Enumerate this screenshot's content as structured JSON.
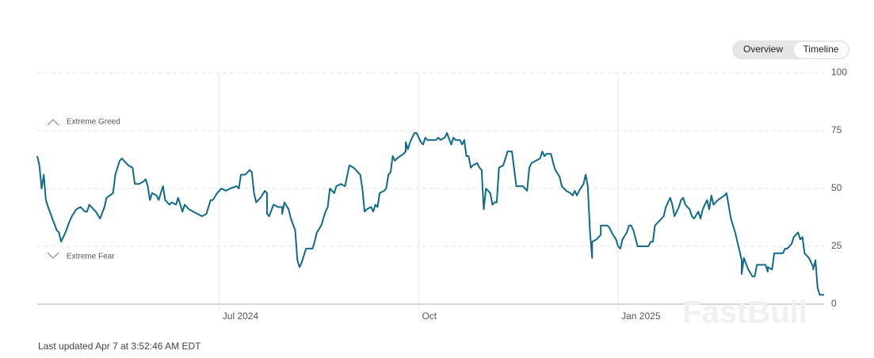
{
  "ui": {
    "buttons": [
      "Overview",
      "Timeline"
    ],
    "footer": "Last updated Apr 7 at 3:52:46 AM EDT",
    "watermark": "FastBull"
  },
  "chart_data": {
    "type": "line",
    "annotations": [
      "Extreme Greed",
      "Extreme Fear"
    ],
    "color": "#0f6a8c",
    "x": [
      0,
      1,
      2,
      3,
      4,
      5,
      7,
      9,
      10,
      11,
      13,
      15,
      16,
      18,
      20,
      22,
      23,
      24,
      26,
      27,
      29,
      31,
      32,
      35,
      36,
      38,
      39,
      41,
      42,
      44,
      45,
      47,
      49,
      50,
      51,
      52,
      53,
      55,
      56,
      58,
      59,
      61,
      62,
      64,
      65,
      67,
      68,
      70,
      72,
      74,
      76,
      78,
      79,
      80,
      81,
      83,
      85,
      87,
      89,
      92,
      93,
      94,
      96,
      98,
      99,
      100,
      101,
      103,
      105,
      106,
      106,
      107,
      109,
      111,
      113,
      113,
      114,
      116,
      117,
      119,
      120,
      121,
      122,
      124,
      125,
      127,
      128,
      129,
      131,
      133,
      134,
      135,
      137,
      138,
      140,
      142,
      144,
      146,
      147,
      149,
      150,
      151,
      152,
      154,
      155,
      156,
      157,
      158,
      160,
      161,
      162,
      163,
      164,
      165,
      166,
      169,
      170,
      170,
      171,
      172,
      173,
      174,
      175,
      177,
      178,
      179,
      180,
      182,
      184,
      185,
      186,
      188,
      189,
      191,
      192,
      193,
      195,
      196,
      197,
      198,
      199,
      200,
      201,
      203,
      204,
      205,
      206,
      207,
      209,
      210,
      211,
      212,
      213,
      215,
      216,
      217,
      219,
      221,
      224,
      226,
      227,
      228,
      230,
      232,
      233,
      234,
      235,
      237,
      238,
      239,
      241,
      242,
      244,
      246,
      247,
      248,
      249,
      250,
      252,
      253,
      254,
      255,
      256,
      256,
      258,
      260,
      260,
      263,
      264,
      265,
      267,
      268,
      269,
      270,
      272,
      273,
      274,
      275,
      277,
      280,
      282,
      283,
      284,
      285,
      287,
      289,
      290,
      292,
      293,
      294,
      296,
      297,
      298,
      299,
      301,
      302,
      303,
      305,
      306,
      307,
      308,
      309,
      310,
      311,
      312,
      313,
      314,
      317,
      318,
      320,
      322,
      324,
      325,
      325,
      326,
      328,
      330,
      331,
      332,
      335,
      336,
      337,
      337,
      339,
      339,
      340,
      342,
      344,
      345,
      346,
      348,
      349,
      351,
      352,
      353,
      354,
      355,
      356,
      358,
      358,
      359,
      360,
      361,
      363
    ],
    "values": [
      64,
      60,
      50,
      56,
      45,
      42,
      37,
      32,
      31,
      27,
      31,
      36,
      38,
      41,
      42,
      40,
      40,
      43,
      41,
      40,
      37,
      42,
      46,
      48,
      56,
      62,
      63,
      61,
      60,
      59,
      52,
      52,
      53,
      54,
      51,
      45,
      48,
      47,
      45,
      51,
      45,
      43,
      44,
      43,
      46,
      40,
      43,
      41,
      40,
      39,
      38,
      39,
      42,
      45,
      45,
      48,
      50,
      49,
      50,
      51,
      50,
      56,
      56,
      58,
      57,
      48,
      44,
      46,
      49,
      48,
      39,
      38,
      43,
      42,
      42,
      39,
      44,
      41,
      37,
      32,
      19,
      16,
      18,
      24,
      24,
      24,
      27,
      31,
      34,
      40,
      42,
      50,
      48,
      51,
      52,
      51,
      60,
      59,
      58,
      56,
      50,
      40,
      41,
      42,
      40,
      43,
      42,
      48,
      49,
      50,
      56,
      57,
      64,
      62,
      63,
      65,
      66,
      70,
      67,
      70,
      72,
      74,
      74,
      70,
      69,
      72,
      71,
      71,
      71,
      72,
      71,
      72,
      74,
      69,
      72,
      71,
      71,
      69,
      71,
      64,
      64,
      59,
      60,
      61,
      59,
      58,
      41,
      50,
      48,
      43,
      44,
      44,
      59,
      60,
      63,
      66,
      66,
      51,
      51,
      49,
      59,
      61,
      62,
      63,
      66,
      64,
      65,
      65,
      61,
      58,
      55,
      51,
      49,
      48,
      47,
      49,
      47,
      49,
      52,
      56,
      51,
      31,
      20,
      27,
      28,
      30,
      34,
      34,
      33,
      31,
      28,
      25,
      24,
      28,
      31,
      34,
      34,
      32,
      25,
      25,
      25,
      27,
      27,
      34,
      36,
      38,
      42,
      46,
      43,
      38,
      42,
      45,
      46,
      43,
      41,
      38,
      37,
      40,
      37,
      41,
      43,
      45,
      41,
      47,
      43,
      44,
      45,
      47,
      48,
      37,
      31,
      23,
      19,
      13,
      20,
      15,
      12,
      12,
      17,
      17,
      17,
      14,
      16,
      15,
      15,
      22,
      22,
      22,
      24,
      24,
      26,
      29,
      31,
      28,
      29,
      22,
      21,
      20,
      16,
      15,
      19,
      7,
      4,
      4
    ],
    "xlim": [
      0,
      363
    ],
    "xticks": [
      {
        "value": 84,
        "label": "Jul 2024"
      },
      {
        "value": 176,
        "label": "Oct"
      },
      {
        "value": 268,
        "label": "Jan 2025"
      }
    ],
    "ylim": [
      0,
      100
    ],
    "yticks": [
      0,
      25,
      50,
      75,
      100
    ],
    "grid": true
  }
}
